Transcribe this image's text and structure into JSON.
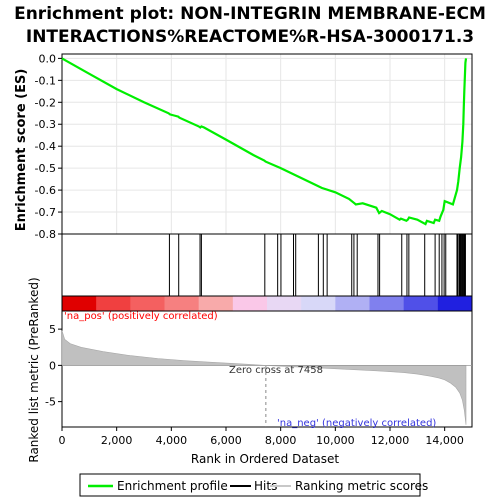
{
  "chart_data": {
    "type": "line",
    "title_line1": "Enrichment plot: NON-INTEGRIN MEMBRANE-ECM",
    "title_line2": "INTERACTIONS%REACTOME%R-HSA-3000171.3",
    "es_ylabel": "Enrichment score (ES)",
    "metric_ylabel": "Ranked list metric (PreRanked)",
    "xlabel": "Rank in Ordered Dataset",
    "xlim": [
      0,
      15000
    ],
    "x_ticks": [
      0,
      2000,
      4000,
      6000,
      8000,
      10000,
      12000,
      14000
    ],
    "x_tick_labels": [
      "0",
      "2,000",
      "4,000",
      "6,000",
      "8,000",
      "10,000",
      "12,000",
      "14,000"
    ],
    "es_ylim": [
      -0.8,
      0.02
    ],
    "es_ticks": [
      0.0,
      -0.1,
      -0.2,
      -0.3,
      -0.4,
      -0.5,
      -0.6,
      -0.7,
      -0.8
    ],
    "es_tick_labels": [
      "0.0",
      "-0.1",
      "-0.2",
      "-0.3",
      "-0.4",
      "-0.5",
      "-0.6",
      "-0.7",
      "-0.8"
    ],
    "metric_ylim": [
      -8.5,
      7.5
    ],
    "metric_ticks": [
      5,
      0,
      -5
    ],
    "metric_tick_labels": [
      "5",
      "0",
      "-5"
    ],
    "series": [
      {
        "name": "Enrichment profile",
        "color": "#00ee00",
        "x": [
          0,
          1000,
          2000,
          3000,
          3900,
          3950,
          4100,
          4250,
          4300,
          5000,
          5060,
          5100,
          5200,
          6000,
          7000,
          7400,
          7450,
          8000,
          9000,
          9500,
          10000,
          10500,
          10700,
          10750,
          11000,
          11500,
          11600,
          11700,
          12000,
          12350,
          12400,
          12600,
          12650,
          12700,
          13000,
          13300,
          13350,
          13600,
          13650,
          13800,
          13850,
          13950,
          14000,
          14300,
          14450,
          14500,
          14550,
          14600,
          14650,
          14680,
          14700,
          14720,
          14740,
          14760,
          14780
        ],
        "y": [
          0.0,
          -0.07,
          -0.14,
          -0.2,
          -0.25,
          -0.255,
          -0.26,
          -0.265,
          -0.27,
          -0.31,
          -0.315,
          -0.31,
          -0.315,
          -0.37,
          -0.44,
          -0.465,
          -0.47,
          -0.5,
          -0.56,
          -0.59,
          -0.61,
          -0.64,
          -0.66,
          -0.665,
          -0.66,
          -0.68,
          -0.705,
          -0.695,
          -0.71,
          -0.735,
          -0.73,
          -0.74,
          -0.735,
          -0.725,
          -0.735,
          -0.755,
          -0.74,
          -0.75,
          -0.735,
          -0.74,
          -0.72,
          -0.69,
          -0.65,
          -0.665,
          -0.6,
          -0.56,
          -0.5,
          -0.45,
          -0.38,
          -0.3,
          -0.22,
          -0.15,
          -0.08,
          -0.02,
          0.0
        ]
      }
    ],
    "hits": [
      3930,
      4270,
      5050,
      5100,
      7420,
      7890,
      8010,
      8470,
      8550,
      9380,
      9560,
      9700,
      10600,
      10680,
      10800,
      11560,
      11620,
      12430,
      12620,
      12690,
      13270,
      13650,
      13800,
      13900,
      13980,
      14040,
      14450,
      14480,
      14530,
      14560,
      14590,
      14620,
      14650,
      14680,
      14710,
      14740,
      14760
    ],
    "metric_profile": {
      "x": [
        0,
        100,
        300,
        700,
        1500,
        2500,
        3500,
        4500,
        5500,
        6500,
        7458,
        8500,
        9500,
        10500,
        11500,
        12500,
        13000,
        13500,
        13800,
        14000,
        14200,
        14400,
        14550,
        14650,
        14720,
        14780
      ],
      "y": [
        4.8,
        3.6,
        3.0,
        2.5,
        1.9,
        1.35,
        0.95,
        0.65,
        0.42,
        0.22,
        0.0,
        -0.2,
        -0.38,
        -0.55,
        -0.75,
        -1.0,
        -1.2,
        -1.5,
        -1.75,
        -2.0,
        -2.4,
        -3.0,
        -3.8,
        -4.8,
        -6.2,
        -8.2
      ]
    },
    "zero_cross": 7458,
    "zero_cross_label": "Zero cross at 7458",
    "pos_label": "'na_pos' (positively correlated)",
    "neg_label": "'na_neg' (negatively correlated)",
    "legend": [
      {
        "label": "Enrichment profile",
        "color": "#00ee00"
      },
      {
        "label": "Hits",
        "color": "#000000"
      },
      {
        "label": "Ranking metric scores",
        "color": "#c8c8c8"
      }
    ],
    "bar_colors": [
      "#e00000",
      "#f04040",
      "#f46060",
      "#f68080",
      "#f8aaaa",
      "#fac8e8",
      "#e8d8f4",
      "#d8d8f8",
      "#b0b0f4",
      "#8080ee",
      "#5050e8",
      "#2020e0"
    ],
    "pos_color": "#ff0000",
    "neg_color": "#3333dd"
  }
}
